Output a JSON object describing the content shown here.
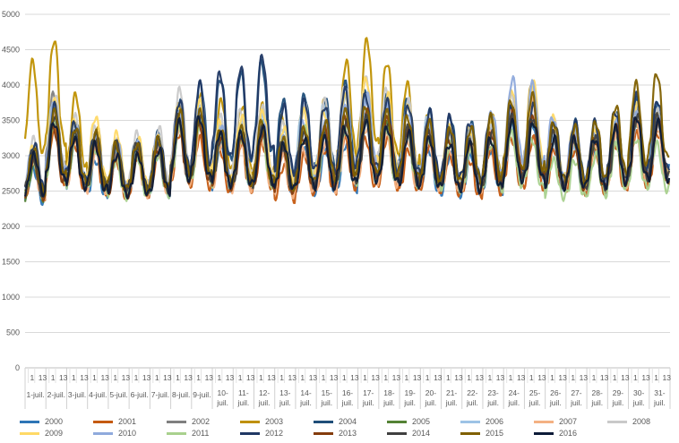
{
  "chart_data": {
    "type": "line",
    "title": "",
    "xlabel": "",
    "ylabel": "",
    "ylim": [
      0,
      5000
    ],
    "y_ticks": [
      "0",
      "500",
      "1000",
      "1500",
      "2000",
      "2500",
      "3000",
      "3500",
      "4000",
      "4500",
      "5000"
    ],
    "grid": "horizontal",
    "legend_position": "bottom",
    "hour_marks": [
      "1",
      "13"
    ],
    "categories": [
      "1-juil.",
      "2-juil.",
      "3-juil.",
      "4-juil.",
      "5-juil.",
      "6-juil.",
      "7-juil.",
      "8-juil.",
      "9-juil.",
      "10-juil.",
      "11-juil.",
      "12-juil.",
      "13-juil.",
      "14-juil.",
      "15-juil.",
      "16-juil.",
      "17-juil.",
      "18-juil.",
      "19-juil.",
      "20-juil.",
      "21-juil.",
      "22-juil.",
      "23-juil.",
      "24-juil.",
      "25-juil.",
      "26-juil.",
      "27-juil.",
      "28-juil.",
      "29-juil.",
      "30-juil.",
      "31-juil."
    ],
    "series": [
      {
        "name": "2000",
        "color": "#2e75b6",
        "values": [
          2500,
          3100,
          2800,
          2600,
          2700,
          2700,
          2650,
          2900,
          3000,
          2750,
          2800,
          2900,
          2700,
          2700,
          2700,
          2750,
          3000,
          2900,
          2850,
          2700,
          2650,
          2650,
          2700,
          2950,
          2950,
          2850,
          2850,
          2750,
          2950,
          3050,
          3100
        ]
      },
      {
        "name": "2001",
        "color": "#c55a11",
        "values": [
          2600,
          2900,
          2750,
          2700,
          2600,
          2650,
          2700,
          2850,
          2800,
          2700,
          2750,
          2750,
          2550,
          2650,
          2700,
          2800,
          2800,
          2800,
          2700,
          2750,
          2650,
          2600,
          2700,
          2800,
          2800,
          2700,
          2700,
          2700,
          2750,
          2850,
          2850
        ]
      },
      {
        "name": "2002",
        "color": "#7f7f7f",
        "values": [
          2700,
          3200,
          2950,
          2800,
          2700,
          2750,
          2750,
          3100,
          3050,
          2900,
          2900,
          2950,
          2800,
          2900,
          2850,
          2900,
          3000,
          2950,
          2900,
          2850,
          2800,
          2800,
          2900,
          3050,
          3000,
          2850,
          2800,
          2800,
          2900,
          3050,
          3000
        ]
      },
      {
        "name": "2003",
        "color": "#bf9000",
        "values": [
          3500,
          3700,
          3200,
          2900,
          2750,
          2750,
          2800,
          3100,
          3200,
          3150,
          3100,
          3100,
          3000,
          3100,
          3150,
          3500,
          3700,
          3500,
          3300,
          3000,
          2900,
          2900,
          3000,
          3200,
          3300,
          2900,
          2800,
          2800,
          2900,
          3000,
          3000
        ]
      },
      {
        "name": "2004",
        "color": "#1f4e79",
        "values": [
          2700,
          3100,
          2950,
          2850,
          2750,
          2800,
          2850,
          3150,
          3300,
          3350,
          3400,
          3500,
          3150,
          3200,
          3150,
          3300,
          3250,
          3200,
          3150,
          3050,
          3000,
          2950,
          3000,
          3100,
          3150,
          2950,
          2950,
          2950,
          3050,
          3150,
          3100
        ]
      },
      {
        "name": "2005",
        "color": "#548235",
        "values": [
          2550,
          3000,
          2850,
          2750,
          2650,
          2700,
          2750,
          2950,
          3000,
          2850,
          2900,
          2950,
          2800,
          2800,
          2850,
          2900,
          3000,
          2950,
          2900,
          2900,
          2800,
          2750,
          2800,
          2950,
          2950,
          2800,
          2750,
          2750,
          2850,
          2950,
          2950
        ]
      },
      {
        "name": "2006",
        "color": "#9dc3e6",
        "values": [
          2650,
          3150,
          2900,
          2800,
          2700,
          2700,
          2700,
          3000,
          3100,
          2900,
          2950,
          3000,
          2900,
          3100,
          3100,
          3200,
          3200,
          3150,
          3100,
          3000,
          2850,
          2800,
          2900,
          3050,
          3000,
          2800,
          2750,
          2800,
          2900,
          3000,
          2950
        ]
      },
      {
        "name": "2007",
        "color": "#f4b183",
        "values": [
          2600,
          3000,
          2800,
          2700,
          2650,
          2650,
          2700,
          2900,
          2900,
          2750,
          2750,
          2800,
          2650,
          2700,
          2750,
          2850,
          2900,
          2850,
          2800,
          2800,
          2700,
          2750,
          2850,
          3100,
          3150,
          2900,
          2800,
          2750,
          2850,
          2950,
          2900
        ]
      },
      {
        "name": "2008",
        "color": "#c9c9c9",
        "values": [
          2800,
          3200,
          3000,
          2900,
          2800,
          2850,
          2900,
          3250,
          3200,
          3000,
          3050,
          3100,
          2950,
          3100,
          3150,
          3300,
          3350,
          3250,
          3150,
          3000,
          2900,
          2850,
          2950,
          3200,
          3300,
          2950,
          2900,
          2900,
          3000,
          3100,
          3050
        ]
      },
      {
        "name": "2009",
        "color": "#ffd966",
        "values": [
          2750,
          3150,
          2950,
          3000,
          2850,
          2800,
          2800,
          3100,
          3150,
          2950,
          3000,
          3050,
          2900,
          3050,
          3050,
          3200,
          3350,
          3200,
          3100,
          2950,
          2900,
          2900,
          3000,
          3250,
          3300,
          3000,
          2900,
          2850,
          3000,
          3100,
          3050
        ]
      },
      {
        "name": "2010",
        "color": "#8faadc",
        "values": [
          2700,
          3100,
          2900,
          2800,
          2750,
          2750,
          2800,
          3050,
          3050,
          2900,
          2900,
          2950,
          2800,
          2950,
          2950,
          3100,
          3200,
          3100,
          3050,
          2950,
          2900,
          2900,
          3050,
          3350,
          3300,
          3000,
          2900,
          2850,
          2950,
          3050,
          3000
        ]
      },
      {
        "name": "2011",
        "color": "#a9d18e",
        "values": [
          2600,
          2950,
          2800,
          2700,
          2600,
          2650,
          2650,
          2900,
          2950,
          2800,
          2800,
          2850,
          2750,
          2900,
          2850,
          2900,
          2950,
          2900,
          2850,
          2800,
          2750,
          2700,
          2750,
          2850,
          2800,
          2600,
          2600,
          2650,
          2750,
          2800,
          2750
        ]
      },
      {
        "name": "2012",
        "color": "#203864",
        "values": [
          2750,
          3100,
          2950,
          2850,
          2750,
          2750,
          2800,
          3150,
          3300,
          3400,
          3450,
          3550,
          3100,
          3150,
          3100,
          3250,
          3200,
          3150,
          3100,
          3050,
          3000,
          2950,
          3000,
          3100,
          3100,
          2950,
          2950,
          2950,
          3050,
          3200,
          3150
        ]
      },
      {
        "name": "2013",
        "color": "#843c0c",
        "values": [
          2600,
          2900,
          2800,
          2750,
          2650,
          2650,
          2700,
          2950,
          2950,
          2800,
          2800,
          2850,
          2700,
          2800,
          2900,
          3000,
          3050,
          3000,
          2900,
          2850,
          2800,
          2750,
          2850,
          3050,
          3000,
          2800,
          2800,
          2800,
          2900,
          3000,
          2950
        ]
      },
      {
        "name": "2014",
        "color": "#404040",
        "values": [
          2650,
          3000,
          2850,
          2800,
          2750,
          2750,
          2750,
          3000,
          3000,
          2850,
          2850,
          2900,
          2750,
          2850,
          2850,
          2950,
          3000,
          2950,
          2900,
          2900,
          2850,
          2800,
          2850,
          3000,
          3000,
          2850,
          2800,
          2800,
          2900,
          3000,
          3000
        ]
      },
      {
        "name": "2015",
        "color": "#7f6000",
        "values": [
          2700,
          3050,
          2900,
          2850,
          2750,
          2750,
          2800,
          3050,
          3050,
          2900,
          2900,
          2950,
          2800,
          2900,
          2950,
          3050,
          3100,
          3050,
          3000,
          2950,
          2900,
          2900,
          3000,
          3150,
          3200,
          2950,
          2900,
          2950,
          3100,
          3300,
          3400
        ]
      },
      {
        "name": "2016",
        "color": "#0d1b38",
        "values": [
          2650,
          2950,
          2800,
          2750,
          2650,
          2650,
          2700,
          2950,
          3000,
          2850,
          2850,
          2900,
          2750,
          2800,
          2800,
          2900,
          2950,
          2900,
          2850,
          2800,
          2750,
          2750,
          2800,
          2950,
          2950,
          2800,
          2800,
          2800,
          2900,
          3000,
          2950
        ]
      }
    ]
  }
}
